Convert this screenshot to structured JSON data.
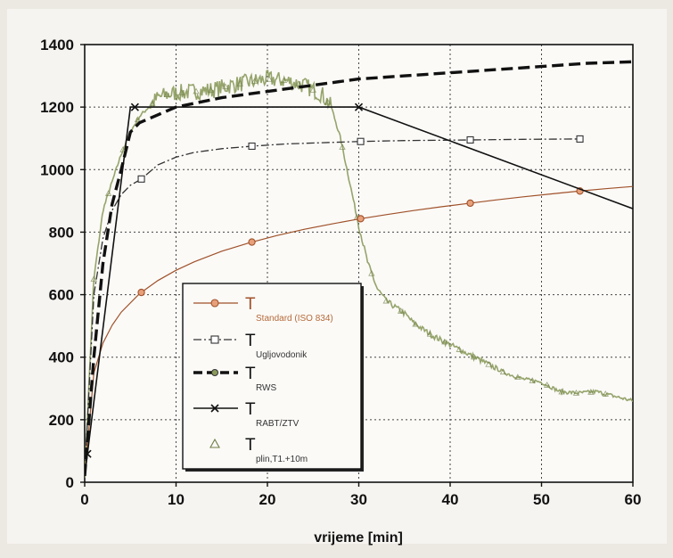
{
  "chart_data": {
    "type": "line",
    "xlabel": "vrijeme [min]",
    "ylabel": "",
    "xlim": [
      0,
      60
    ],
    "ylim": [
      0,
      1400
    ],
    "x_ticks": [
      "0",
      "10",
      "20",
      "30",
      "40",
      "50",
      "60"
    ],
    "y_ticks": [
      "0",
      "200",
      "400",
      "600",
      "800",
      "1000",
      "1200",
      "1400"
    ],
    "grid": true,
    "legend_position": "bottom-left",
    "series": [
      {
        "name": "T",
        "subscript": "Standard (ISO 834)",
        "color": "#a0512a",
        "style": "solid-circle-markers",
        "x": [
          0,
          1,
          2,
          3,
          4,
          6,
          8,
          10,
          12,
          15,
          18,
          21,
          24,
          27,
          30,
          33,
          36,
          39,
          42,
          45,
          48,
          51,
          54,
          57,
          60
        ],
        "y": [
          20,
          350,
          445,
          502,
          544,
          603,
          645,
          678,
          705,
          739,
          766,
          789,
          809,
          826,
          842,
          856,
          869,
          881,
          892,
          903,
          913,
          922,
          931,
          939,
          946
        ],
        "markers_x": [
          6.2,
          18.3,
          30.2,
          42.2,
          54.2
        ]
      },
      {
        "name": "T",
        "subscript": "Ugljovodonik",
        "color": "#333333",
        "style": "dashdot-square-markers",
        "x": [
          0,
          1,
          2,
          3,
          4,
          5,
          6.2,
          8,
          10,
          12,
          15,
          18.3,
          22,
          26,
          30.2,
          35,
          42.2,
          48,
          54.2
        ],
        "y": [
          20,
          600,
          780,
          870,
          920,
          950,
          970,
          1015,
          1040,
          1055,
          1067,
          1075,
          1082,
          1086,
          1090,
          1093,
          1095,
          1097,
          1098
        ],
        "markers_x": [
          6.2,
          18.3,
          30.2,
          42.2,
          54.2
        ]
      },
      {
        "name": "T",
        "subscript": "RWS",
        "color": "#111111",
        "style": "bold-dashed",
        "x": [
          0,
          1,
          2,
          3,
          4,
          5,
          6,
          10,
          15,
          20,
          25,
          30,
          35,
          40,
          45,
          50,
          55,
          60
        ],
        "y": [
          20,
          400,
          700,
          890,
          1000,
          1120,
          1150,
          1200,
          1230,
          1250,
          1270,
          1290,
          1300,
          1310,
          1320,
          1330,
          1340,
          1345
        ]
      },
      {
        "name": "T",
        "subscript": "RABT/ZTV",
        "color": "#111111",
        "style": "solid-x-markers",
        "x": [
          0,
          5,
          30,
          60
        ],
        "y": [
          20,
          1200,
          1200,
          875
        ],
        "markers_x": [
          0.3,
          5.5,
          30
        ]
      },
      {
        "name": "T",
        "subscript": "plin,T1.+10m",
        "color": "#8a9a5b",
        "style": "noisy-triangles",
        "x": [
          0,
          1,
          2,
          3,
          4,
          5,
          6,
          7,
          8,
          9,
          10,
          12,
          14,
          16,
          18,
          20,
          22,
          24,
          26,
          27,
          28,
          29,
          30,
          31,
          32,
          33,
          34,
          35,
          36,
          38,
          40,
          42,
          44,
          46,
          48,
          50,
          52,
          54,
          56,
          58,
          60
        ],
        "y": [
          20,
          650,
          870,
          960,
          1050,
          1120,
          1170,
          1200,
          1230,
          1240,
          1245,
          1250,
          1255,
          1270,
          1280,
          1290,
          1285,
          1270,
          1240,
          1200,
          1100,
          960,
          820,
          700,
          620,
          580,
          560,
          540,
          510,
          470,
          440,
          410,
          380,
          350,
          330,
          320,
          290,
          285,
          290,
          275,
          260
        ]
      }
    ]
  }
}
